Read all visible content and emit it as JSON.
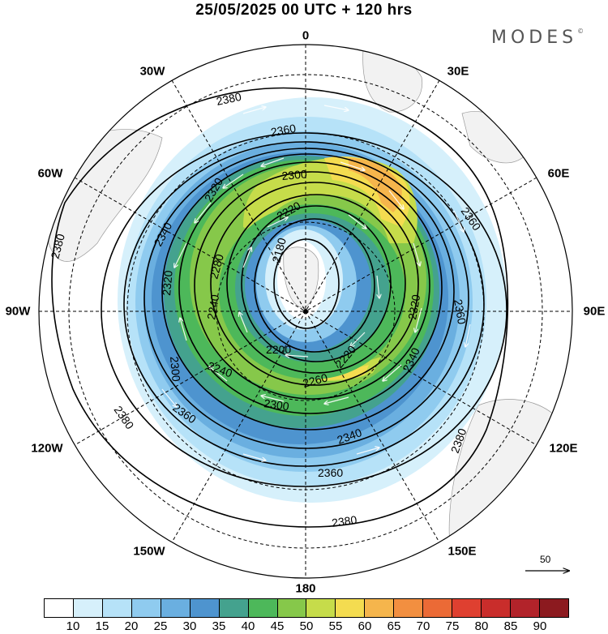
{
  "title": "25/05/2025  00 UTC  + 120 hrs",
  "brand": "MODES",
  "brand_mark": "©",
  "longitude_labels": [
    {
      "id": "0",
      "label": "0"
    },
    {
      "id": "30E",
      "label": "30E"
    },
    {
      "id": "60E",
      "label": "60E"
    },
    {
      "id": "90E",
      "label": "90E"
    },
    {
      "id": "120E",
      "label": "120E"
    },
    {
      "id": "150E",
      "label": "150E"
    },
    {
      "id": "180",
      "label": "180"
    },
    {
      "id": "150W",
      "label": "150W"
    },
    {
      "id": "120W",
      "label": "120W"
    },
    {
      "id": "90W",
      "label": "90W"
    },
    {
      "id": "60W",
      "label": "60W"
    },
    {
      "id": "30W",
      "label": "30W"
    }
  ],
  "contour_labels": [
    "2380",
    "2360",
    "2340",
    "2320",
    "2300",
    "2280",
    "2260",
    "2240",
    "2220",
    "2200",
    "2180"
  ],
  "wind_scale_reference": "50",
  "colorbar": {
    "ticks": [
      "10",
      "15",
      "20",
      "25",
      "30",
      "35",
      "40",
      "45",
      "50",
      "55",
      "60",
      "65",
      "70",
      "75",
      "80",
      "85",
      "90"
    ],
    "colors": [
      "#ffffff",
      "#d6f0fb",
      "#b6e2f8",
      "#8fcbef",
      "#6aafe0",
      "#4e94cf",
      "#44a28e",
      "#4db85a",
      "#86c84a",
      "#c6dc4a",
      "#f4dc50",
      "#f5b54c",
      "#f28f40",
      "#eb6a36",
      "#df4030",
      "#c92d2b",
      "#b2232a",
      "#8c1a1f"
    ]
  }
}
